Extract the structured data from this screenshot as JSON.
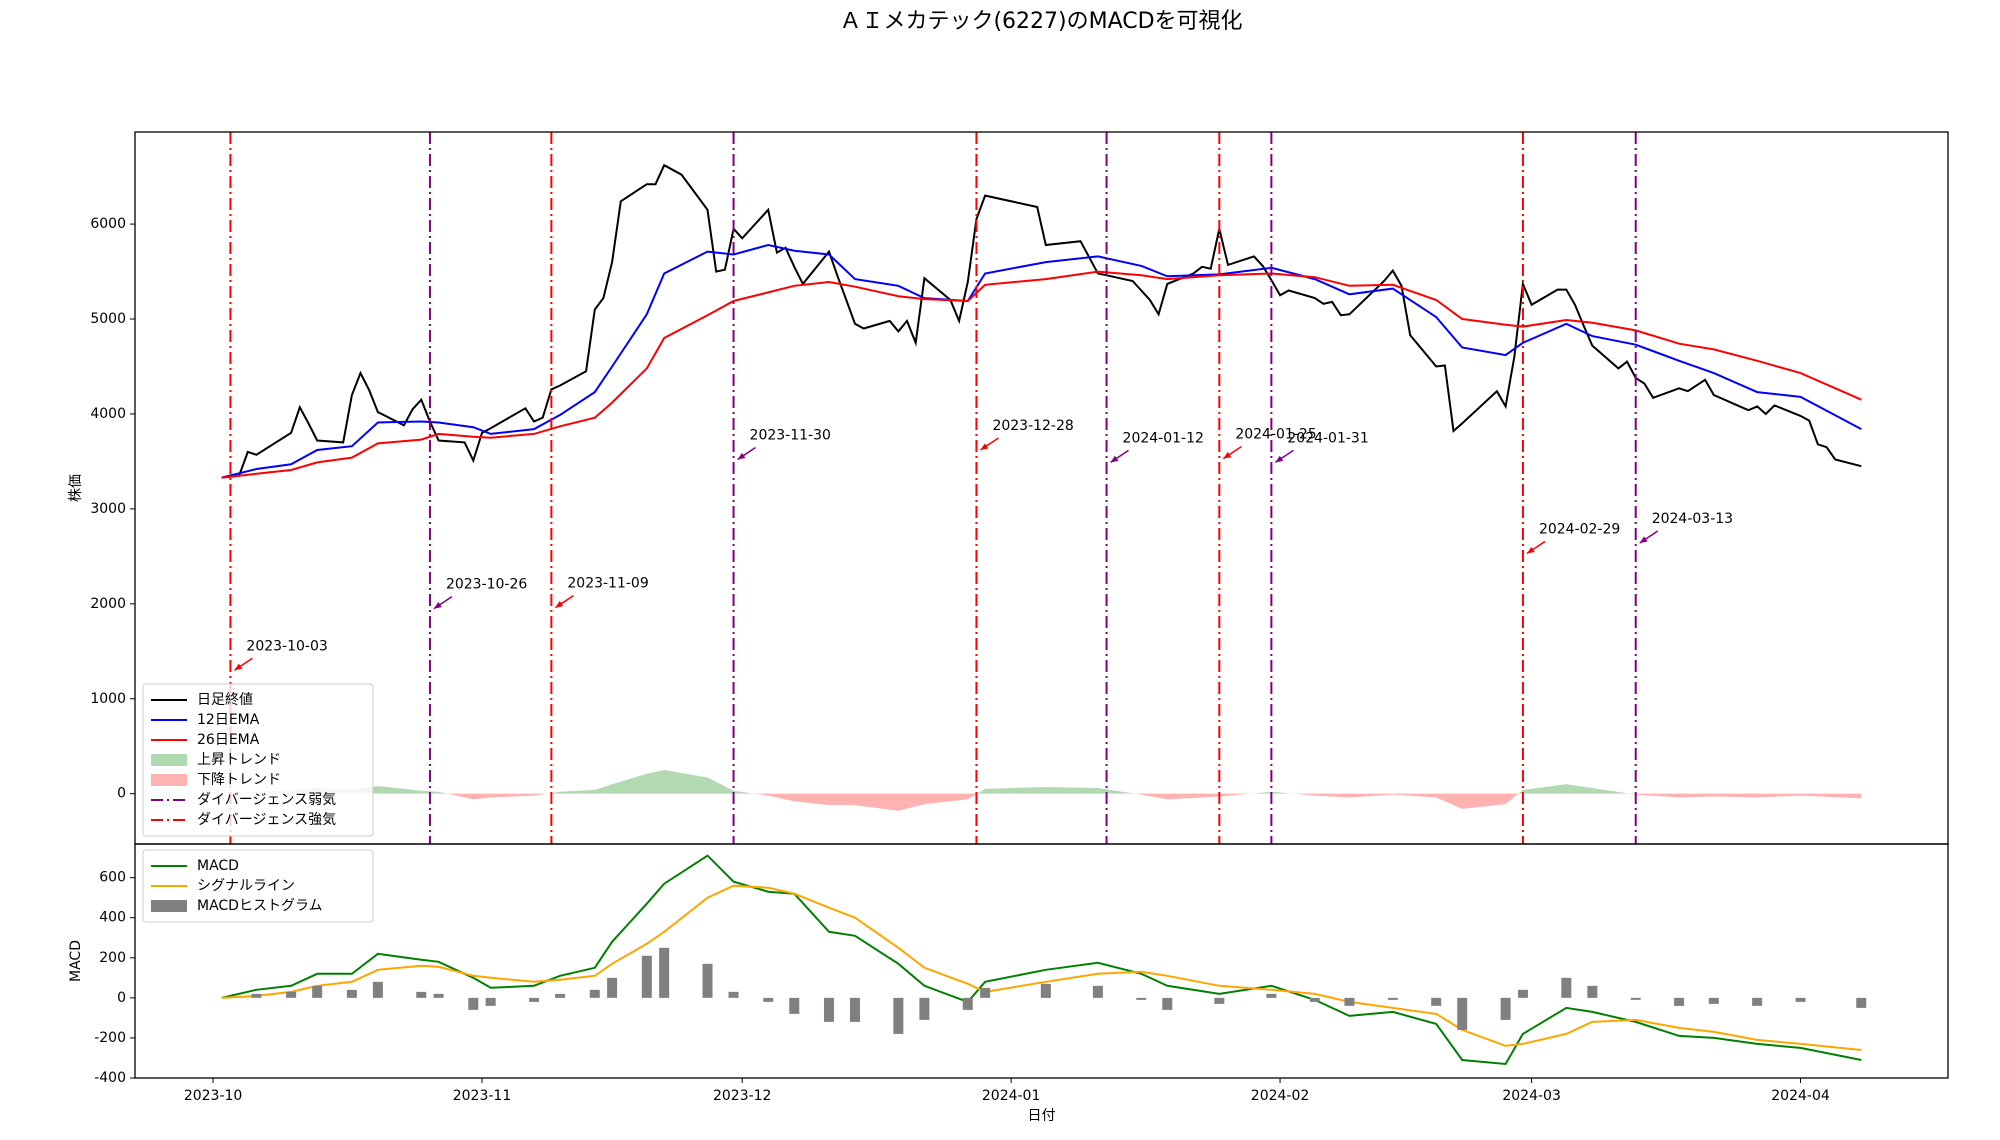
{
  "chart_data": [
    {
      "type": "line",
      "title": "ＡＩメカテック(6227)のMACDを可視化",
      "ylabel": "株価",
      "xlim": [
        "2023-09-22",
        "2024-04-18"
      ],
      "ylim": [
        -530,
        6970
      ],
      "yticks": [
        0,
        1000,
        2000,
        3000,
        4000,
        5000,
        6000
      ],
      "legend": "lower left",
      "x": [
        "2023-10-02",
        "2023-10-06",
        "2023-10-10",
        "2023-10-13",
        "2023-10-17",
        "2023-10-20",
        "2023-10-25",
        "2023-10-27",
        "2023-10-31",
        "2023-11-02",
        "2023-11-07",
        "2023-11-10",
        "2023-11-14",
        "2023-11-16",
        "2023-11-20",
        "2023-11-22",
        "2023-11-27",
        "2023-11-30",
        "2023-12-04",
        "2023-12-07",
        "2023-12-11",
        "2023-12-14",
        "2023-12-19",
        "2023-12-22",
        "2023-12-27",
        "2023-12-29",
        "2024-01-05",
        "2024-01-11",
        "2024-01-16",
        "2024-01-19",
        "2024-01-25",
        "2024-01-31",
        "2024-02-05",
        "2024-02-09",
        "2024-02-14",
        "2024-02-19",
        "2024-02-22",
        "2024-02-27",
        "2024-02-29",
        "2024-03-05",
        "2024-03-08",
        "2024-03-13",
        "2024-03-18",
        "2024-03-22",
        "2024-03-27",
        "2024-04-01",
        "2024-04-08"
      ],
      "series": [
        {
          "name": "日足終値",
          "color": "#000000",
          "x": [
            "2023-10-02",
            "2023-10-04",
            "2023-10-05",
            "2023-10-06",
            "2023-10-10",
            "2023-10-11",
            "2023-10-12",
            "2023-10-13",
            "2023-10-16",
            "2023-10-17",
            "2023-10-18",
            "2023-10-19",
            "2023-10-20",
            "2023-10-23",
            "2023-10-24",
            "2023-10-25",
            "2023-10-26",
            "2023-10-27",
            "2023-10-30",
            "2023-10-31",
            "2023-11-01",
            "2023-11-02",
            "2023-11-06",
            "2023-11-07",
            "2023-11-08",
            "2023-11-09",
            "2023-11-10",
            "2023-11-13",
            "2023-11-14",
            "2023-11-15",
            "2023-11-16",
            "2023-11-17",
            "2023-11-20",
            "2023-11-21",
            "2023-11-22",
            "2023-11-24",
            "2023-11-27",
            "2023-11-28",
            "2023-11-29",
            "2023-11-30",
            "2023-12-01",
            "2023-12-04",
            "2023-12-05",
            "2023-12-06",
            "2023-12-07",
            "2023-12-08",
            "2023-12-11",
            "2023-12-12",
            "2023-12-13",
            "2023-12-14",
            "2023-12-15",
            "2023-12-18",
            "2023-12-19",
            "2023-12-20",
            "2023-12-21",
            "2023-12-22",
            "2023-12-25",
            "2023-12-26",
            "2023-12-27",
            "2023-12-28",
            "2023-12-29",
            "2024-01-04",
            "2024-01-05",
            "2024-01-09",
            "2024-01-10",
            "2024-01-11",
            "2024-01-12",
            "2024-01-15",
            "2024-01-16",
            "2024-01-17",
            "2024-01-18",
            "2024-01-19",
            "2024-01-22",
            "2024-01-23",
            "2024-01-24",
            "2024-01-25",
            "2024-01-26",
            "2024-01-29",
            "2024-01-30",
            "2024-01-31",
            "2024-02-01",
            "2024-02-02",
            "2024-02-05",
            "2024-02-06",
            "2024-02-07",
            "2024-02-08",
            "2024-02-09",
            "2024-02-13",
            "2024-02-14",
            "2024-02-15",
            "2024-02-16",
            "2024-02-19",
            "2024-02-20",
            "2024-02-21",
            "2024-02-22",
            "2024-02-26",
            "2024-02-27",
            "2024-02-28",
            "2024-02-29",
            "2024-03-01",
            "2024-03-04",
            "2024-03-05",
            "2024-03-06",
            "2024-03-07",
            "2024-03-08",
            "2024-03-11",
            "2024-03-12",
            "2024-03-13",
            "2024-03-14",
            "2024-03-15",
            "2024-03-18",
            "2024-03-19",
            "2024-03-21",
            "2024-03-22",
            "2024-03-25",
            "2024-03-26",
            "2024-03-27",
            "2024-03-28",
            "2024-03-29",
            "2024-04-01",
            "2024-04-02",
            "2024-04-03",
            "2024-04-04",
            "2024-04-05",
            "2024-04-08"
          ],
          "values": [
            3330,
            3350,
            3600,
            3570,
            3800,
            4070,
            3900,
            3720,
            3700,
            4200,
            4430,
            4250,
            4020,
            3880,
            4050,
            4150,
            3920,
            3720,
            3700,
            3510,
            3800,
            3850,
            4060,
            3920,
            3960,
            4260,
            4300,
            4450,
            5100,
            5220,
            5600,
            6240,
            6420,
            6420,
            6620,
            6520,
            6150,
            5500,
            5520,
            5950,
            5850,
            6150,
            5700,
            5750,
            5550,
            5370,
            5710,
            5450,
            5200,
            4950,
            4900,
            4980,
            4870,
            4980,
            4750,
            5430,
            5200,
            4980,
            5390,
            6050,
            6300,
            6180,
            5780,
            5820,
            5650,
            5480,
            5460,
            5400,
            5300,
            5200,
            5050,
            5370,
            5480,
            5550,
            5530,
            5950,
            5570,
            5660,
            5560,
            5410,
            5250,
            5300,
            5220,
            5160,
            5180,
            5040,
            5050,
            5400,
            5510,
            5350,
            4830,
            4500,
            4510,
            3820,
            3900,
            4240,
            4080,
            4600,
            5370,
            5150,
            5310,
            5310,
            5150,
            4930,
            4720,
            4480,
            4550,
            4380,
            4320,
            4170,
            4270,
            4240,
            4360,
            4200,
            4080,
            4040,
            4080,
            4000,
            4090,
            3980,
            3930,
            3680,
            3650,
            3520,
            3450
          ]
        },
        {
          "name": "12日EMA",
          "color": "#0000ff",
          "values": [
            3330,
            3420,
            3470,
            3620,
            3660,
            3910,
            3920,
            3910,
            3860,
            3790,
            3840,
            3990,
            4230,
            4500,
            5050,
            5480,
            5710,
            5680,
            5780,
            5720,
            5680,
            5420,
            5350,
            5220,
            5190,
            5480,
            5600,
            5660,
            5560,
            5450,
            5470,
            5540,
            5420,
            5260,
            5320,
            5020,
            4700,
            4620,
            4750,
            4950,
            4820,
            4730,
            4560,
            4430,
            4230,
            4180,
            3840
          ]
        },
        {
          "name": "26日EMA",
          "color": "#ff0000",
          "values": [
            3330,
            3370,
            3410,
            3490,
            3540,
            3690,
            3730,
            3790,
            3760,
            3750,
            3790,
            3870,
            3960,
            4120,
            4480,
            4800,
            5040,
            5190,
            5280,
            5350,
            5390,
            5340,
            5240,
            5210,
            5190,
            5360,
            5420,
            5500,
            5460,
            5420,
            5460,
            5480,
            5440,
            5350,
            5360,
            5200,
            5000,
            4940,
            4920,
            4990,
            4960,
            4880,
            4740,
            4680,
            4560,
            4430,
            4150
          ]
        }
      ],
      "trend_fill": [
        {
          "name": "上昇トレンド",
          "color": "#008000"
        },
        {
          "name": "下降トレンド",
          "color": "#ff0000"
        }
      ],
      "divergences": [
        {
          "name": "ダイバージェンス弱気",
          "color": "#800080",
          "dates": [
            "2023-10-26",
            "2023-11-30",
            "2024-01-12",
            "2024-01-31",
            "2024-03-13"
          ]
        },
        {
          "name": "ダイバージェンス強気",
          "color": "#ff0000",
          "dates": [
            "2023-10-03",
            "2023-11-09",
            "2023-12-28",
            "2024-01-25",
            "2024-02-29"
          ]
        }
      ],
      "annotations": [
        {
          "text": "2023-10-03",
          "x": "2023-10-03",
          "y": 1300,
          "color": "#ff0000"
        },
        {
          "text": "2023-10-26",
          "x": "2023-10-26",
          "y": 1950,
          "color": "#800080"
        },
        {
          "text": "2023-11-09",
          "x": "2023-11-09",
          "y": 1960,
          "color": "#ff0000"
        },
        {
          "text": "2023-11-30",
          "x": "2023-11-30",
          "y": 3520,
          "color": "#800080"
        },
        {
          "text": "2023-12-28",
          "x": "2023-12-28",
          "y": 3620,
          "color": "#ff0000"
        },
        {
          "text": "2024-01-12",
          "x": "2024-01-12",
          "y": 3490,
          "color": "#800080"
        },
        {
          "text": "2024-01-25",
          "x": "2024-01-25",
          "y": 3530,
          "color": "#ff0000"
        },
        {
          "text": "2024-01-31",
          "x": "2024-01-31",
          "y": 3490,
          "color": "#800080"
        },
        {
          "text": "2024-02-29",
          "x": "2024-02-29",
          "y": 2530,
          "color": "#ff0000"
        },
        {
          "text": "2024-03-13",
          "x": "2024-03-13",
          "y": 2640,
          "color": "#800080"
        }
      ]
    },
    {
      "type": "line",
      "ylabel": "MACD",
      "xlabel": "日付",
      "xlim": [
        "2023-09-22",
        "2024-04-18"
      ],
      "xticks": [
        {
          "value": "2023-10-01",
          "label": "2023-10"
        },
        {
          "value": "2023-11-01",
          "label": "2023-11"
        },
        {
          "value": "2023-12-01",
          "label": "2023-12"
        },
        {
          "value": "2024-01-01",
          "label": "2024-01"
        },
        {
          "value": "2024-02-01",
          "label": "2024-02"
        },
        {
          "value": "2024-03-01",
          "label": "2024-03"
        },
        {
          "value": "2024-04-01",
          "label": "2024-04"
        }
      ],
      "ylim": [
        -400,
        768
      ],
      "yticks": [
        -400,
        -200,
        0,
        200,
        400,
        600
      ],
      "legend": "upper left",
      "x": [
        "2023-10-02",
        "2023-10-06",
        "2023-10-10",
        "2023-10-13",
        "2023-10-17",
        "2023-10-20",
        "2023-10-25",
        "2023-10-27",
        "2023-10-31",
        "2023-11-02",
        "2023-11-07",
        "2023-11-10",
        "2023-11-14",
        "2023-11-16",
        "2023-11-20",
        "2023-11-22",
        "2023-11-27",
        "2023-11-30",
        "2023-12-04",
        "2023-12-07",
        "2023-12-11",
        "2023-12-14",
        "2023-12-19",
        "2023-12-22",
        "2023-12-27",
        "2023-12-29",
        "2024-01-05",
        "2024-01-11",
        "2024-01-16",
        "2024-01-19",
        "2024-01-25",
        "2024-01-31",
        "2024-02-05",
        "2024-02-09",
        "2024-02-14",
        "2024-02-19",
        "2024-02-22",
        "2024-02-27",
        "2024-02-29",
        "2024-03-05",
        "2024-03-08",
        "2024-03-13",
        "2024-03-18",
        "2024-03-22",
        "2024-03-27",
        "2024-04-01",
        "2024-04-08"
      ],
      "series": [
        {
          "name": "MACD",
          "color": "#008000",
          "type": "line",
          "values": [
            0,
            40,
            60,
            120,
            120,
            220,
            190,
            180,
            100,
            50,
            60,
            110,
            150,
            280,
            470,
            570,
            710,
            580,
            530,
            520,
            330,
            310,
            170,
            60,
            -20,
            80,
            140,
            175,
            120,
            60,
            20,
            60,
            -10,
            -90,
            -70,
            -130,
            -310,
            -330,
            -180,
            -50,
            -70,
            -120,
            -190,
            -200,
            -230,
            -250,
            -310
          ]
        },
        {
          "name": "シグナルライン",
          "color": "#ffa500",
          "type": "line",
          "values": [
            0,
            10,
            30,
            60,
            80,
            140,
            160,
            155,
            110,
            100,
            80,
            90,
            110,
            170,
            270,
            330,
            500,
            560,
            550,
            520,
            450,
            400,
            250,
            150,
            70,
            30,
            80,
            120,
            130,
            110,
            60,
            40,
            20,
            -20,
            -50,
            -80,
            -160,
            -240,
            -230,
            -180,
            -120,
            -110,
            -150,
            -170,
            -210,
            -230,
            -260
          ]
        },
        {
          "name": "MACDヒストグラム",
          "color": "#808080",
          "type": "bar",
          "values": [
            0,
            20,
            30,
            60,
            40,
            80,
            30,
            20,
            -60,
            -40,
            -20,
            20,
            40,
            100,
            210,
            250,
            170,
            30,
            -20,
            -80,
            -120,
            -120,
            -180,
            -110,
            -60,
            50,
            70,
            60,
            -10,
            -60,
            -30,
            20,
            -20,
            -40,
            -10,
            -40,
            -160,
            -110,
            40,
            100,
            60,
            -10,
            -40,
            -30,
            -40,
            -20,
            -50
          ]
        }
      ]
    }
  ]
}
